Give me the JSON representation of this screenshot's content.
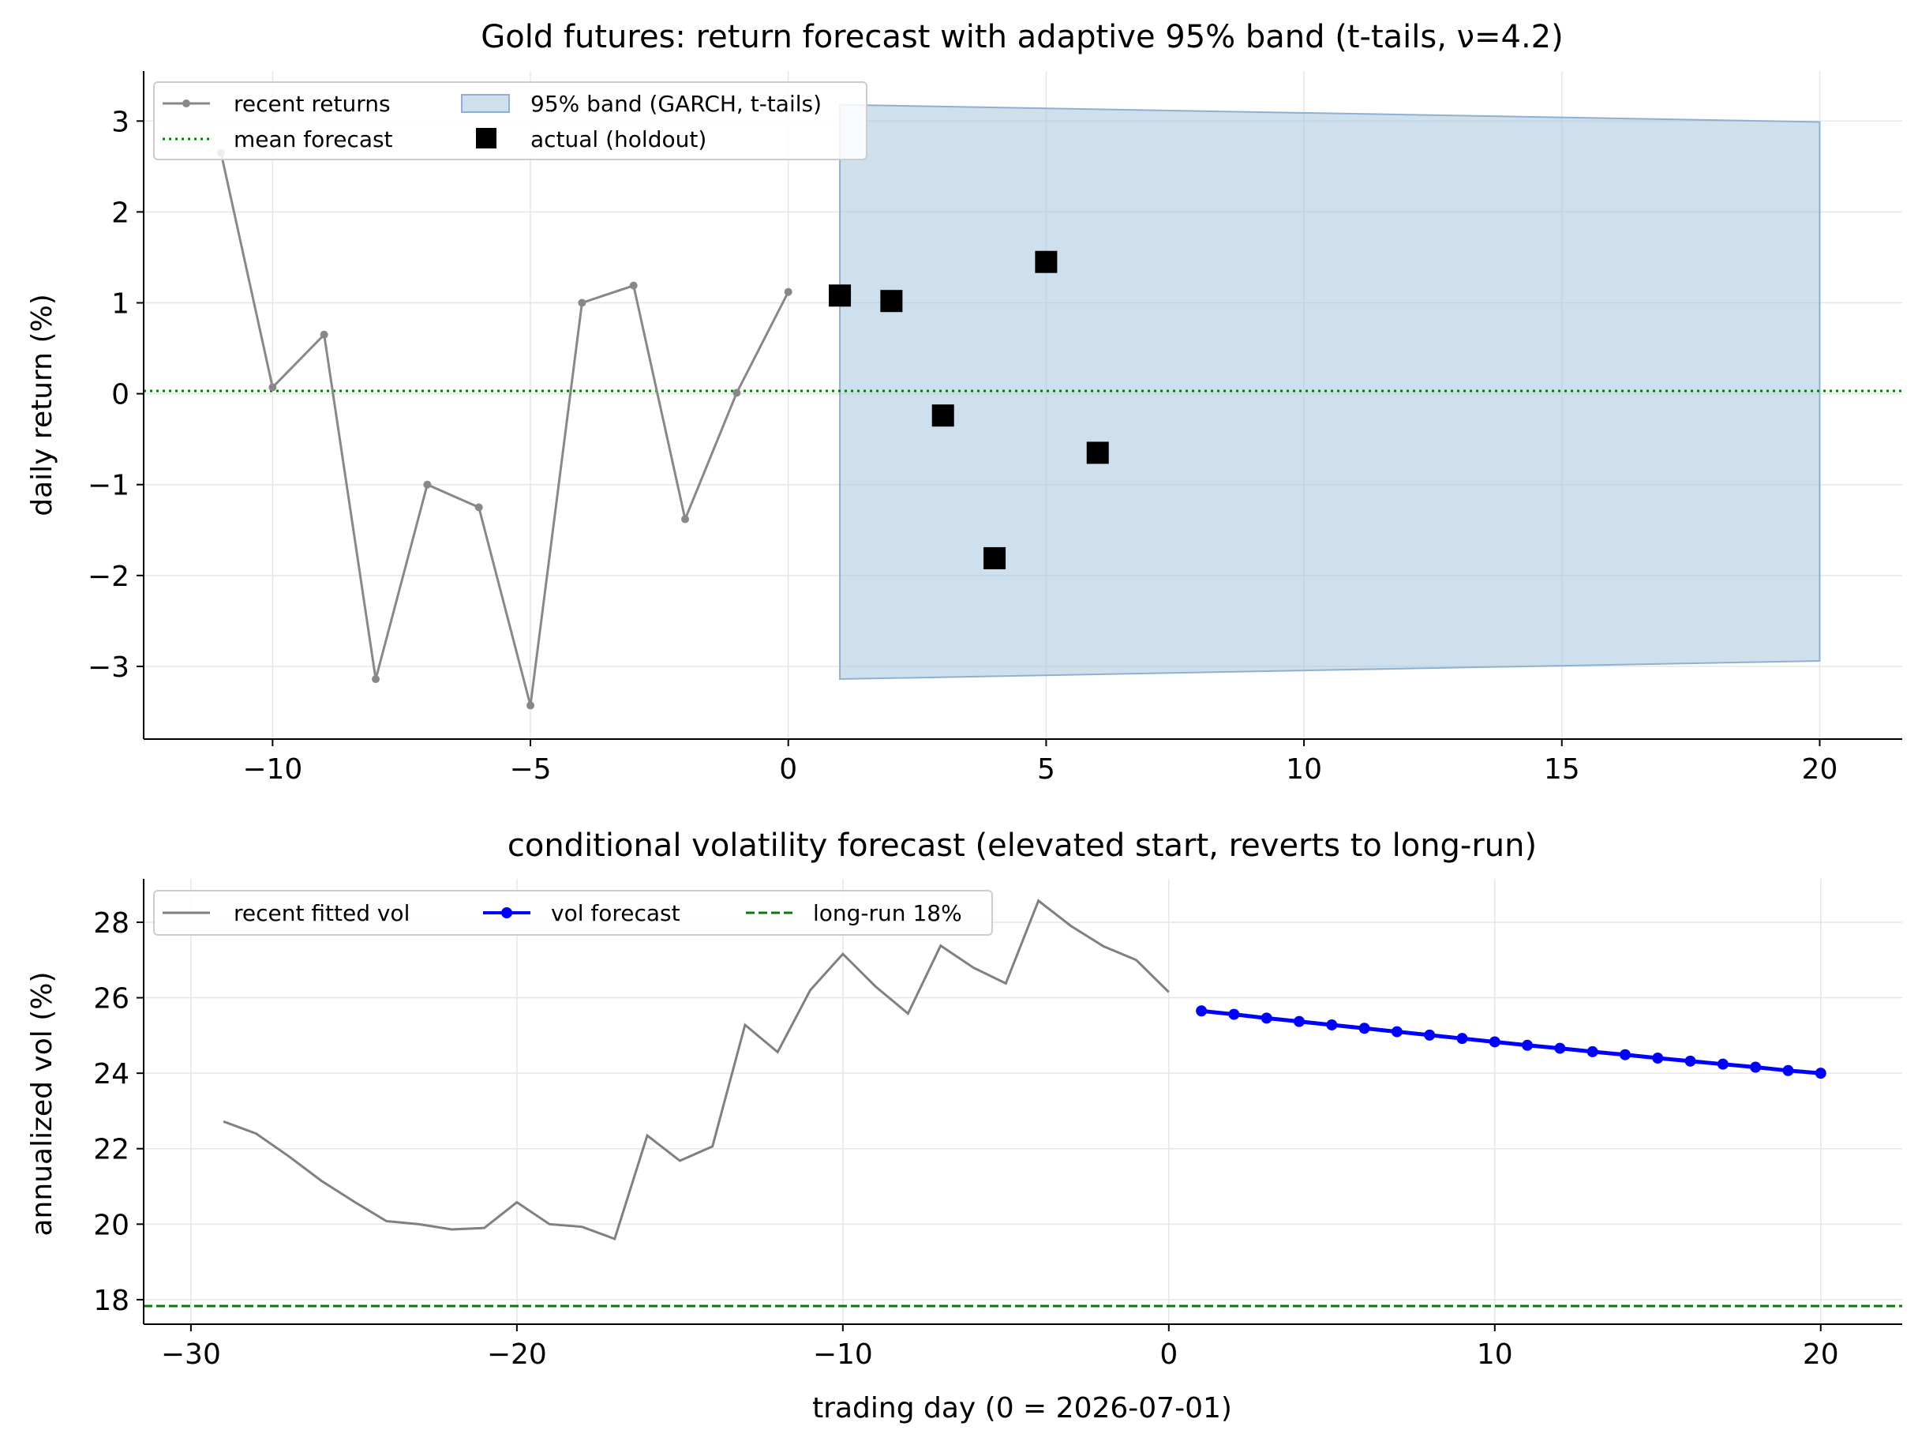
{
  "chart_data": [
    {
      "type": "line",
      "title": "Gold futures: return forecast with adaptive 95% band (t-tails, ν=4.2)",
      "xlabel": "",
      "ylabel": "daily return (%)",
      "xlim": [
        -12.5,
        21.6
      ],
      "ylim": [
        -3.8,
        3.55
      ],
      "xticks": [
        -10,
        -5,
        0,
        5,
        10,
        15,
        20
      ],
      "yticks": [
        -3,
        -2,
        -1,
        0,
        1,
        2,
        3
      ],
      "grid": true,
      "legend_position": "upper-left",
      "legend": {
        "recent": "recent returns",
        "mean": "mean forecast",
        "band": "95% band (GARCH, t-tails)",
        "actual": "actual (holdout)"
      },
      "recent_returns": {
        "x": [
          -11,
          -10,
          -9,
          -8,
          -7,
          -6,
          -5,
          -4,
          -3,
          -2,
          -1,
          0
        ],
        "y": [
          2.65,
          0.07,
          0.65,
          -3.14,
          -1.0,
          -1.25,
          -3.43,
          1.0,
          1.19,
          -1.38,
          0.01,
          1.12
        ],
        "color": "#888888"
      },
      "mean_forecast": {
        "value": 0.03,
        "color": "#008000"
      },
      "band": {
        "x": [
          1,
          20
        ],
        "upper": [
          3.18,
          2.99
        ],
        "lower": [
          -3.14,
          -2.94
        ],
        "color": "#a6c4de"
      },
      "actual_holdout": {
        "x": [
          1,
          2,
          3,
          4,
          5,
          6
        ],
        "y": [
          1.08,
          1.02,
          -0.24,
          -1.81,
          1.45,
          -0.65
        ],
        "color": "#000000"
      }
    },
    {
      "type": "line",
      "title": "conditional volatility forecast (elevated start, reverts to long-run)",
      "xlabel": "trading day (0 = 2026-07-01)",
      "ylabel": "annualized vol (%)",
      "xlim": [
        -31.45,
        22.5
      ],
      "ylim": [
        17.35,
        29.15
      ],
      "xticks": [
        -30,
        -20,
        -10,
        0,
        10,
        20
      ],
      "yticks": [
        18,
        20,
        22,
        24,
        26,
        28
      ],
      "grid": true,
      "legend_position": "upper-left",
      "legend": {
        "recent": "recent fitted vol",
        "forecast": "vol forecast",
        "longrun": "long-run 18%"
      },
      "recent_vol": {
        "x": [
          -29,
          -28,
          -27,
          -26,
          -25,
          -24,
          -23,
          -22,
          -21,
          -20,
          -19,
          -18,
          -17,
          -16,
          -15,
          -14,
          -13,
          -12,
          -11,
          -10,
          -9,
          -8,
          -7,
          -6,
          -5,
          -4,
          -3,
          -2,
          -1,
          0
        ],
        "y": [
          22.72,
          22.4,
          21.8,
          21.15,
          20.6,
          20.08,
          20.0,
          19.86,
          19.9,
          20.58,
          20.0,
          19.93,
          19.61,
          22.35,
          21.68,
          22.06,
          25.28,
          24.56,
          26.2,
          27.16,
          26.3,
          25.58,
          27.38,
          26.8,
          26.38,
          28.57,
          27.9,
          27.36,
          27.0,
          26.15
        ],
        "color": "#808080"
      },
      "vol_forecast": {
        "x": [
          1,
          2,
          3,
          4,
          5,
          6,
          7,
          8,
          9,
          10,
          11,
          12,
          13,
          14,
          15,
          16,
          17,
          18,
          19,
          20
        ],
        "y": [
          25.65,
          25.56,
          25.46,
          25.37,
          25.28,
          25.19,
          25.1,
          25.01,
          24.92,
          24.83,
          24.74,
          24.66,
          24.57,
          24.49,
          24.4,
          24.32,
          24.24,
          24.16,
          24.07,
          24.0
        ],
        "color": "#0000ff"
      },
      "long_run": {
        "value": 17.83,
        "color": "#008000"
      }
    }
  ]
}
